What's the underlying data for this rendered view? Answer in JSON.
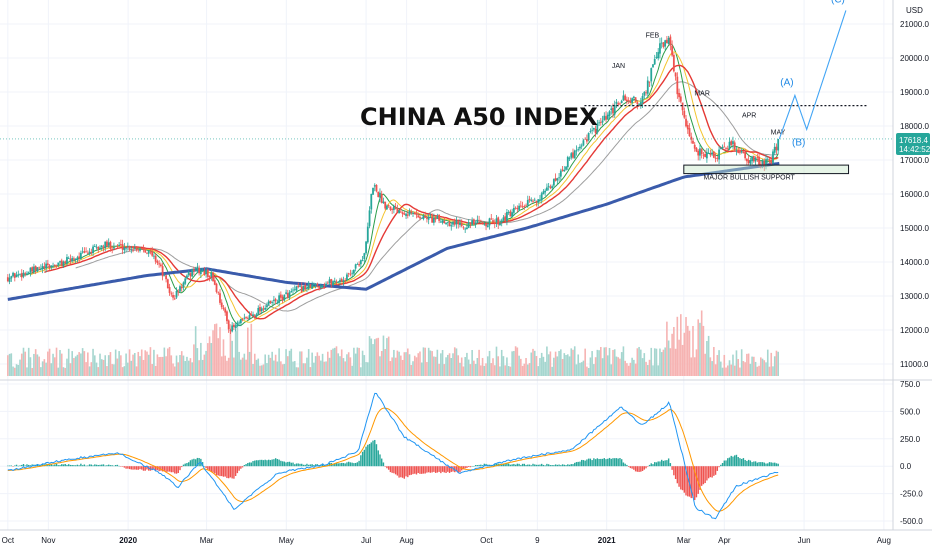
{
  "chart_data": [
    {
      "type": "candlestick",
      "title": "CHINA A50 INDEX",
      "currency": "USD",
      "yticks": [
        11000,
        12000,
        13000,
        14000,
        15000,
        16000,
        17000,
        18000,
        19000,
        20000,
        21000
      ],
      "ytick_labels": [
        "11000.0",
        "12000.0",
        "13000.0",
        "14000.0",
        "15000.0",
        "16000.0",
        "17000.0",
        "18000.0",
        "19000.0",
        "20000.0",
        "21000.0"
      ],
      "ylim": [
        10600,
        21300
      ],
      "last_price": "17618.4",
      "countdown": "14:42:52",
      "colors": {
        "up": "#26a69a",
        "down": "#ef5350",
        "ma_fast": "#2a9d4a",
        "ma_mid": "#f4c430",
        "ma_slow": "#e53935",
        "ma_long": "#9e9e9e",
        "ma_200": "#3a5bab",
        "wave": "#42a5f5"
      },
      "annotations": [
        {
          "label": "JAN",
          "x": "2021-01-10",
          "y": 19700
        },
        {
          "label": "FEB",
          "x": "2021-02-05",
          "y": 20600
        },
        {
          "label": "MAR",
          "x": "2021-03-15",
          "y": 18900
        },
        {
          "label": "APR",
          "x": "2021-04-20",
          "y": 18250
        },
        {
          "label": "MAY",
          "x": "2021-05-12",
          "y": 17750
        },
        {
          "label": "MAJOR BULLISH SUPPORT",
          "x": "2021-04-20",
          "y": 16430
        }
      ],
      "resistance_level": 18600,
      "support_zone": [
        16600,
        16850
      ],
      "wave_labels": [
        "(A)",
        "(B)",
        "(C)"
      ],
      "wave_path": [
        {
          "x": "2021-05-13",
          "y": 17620
        },
        {
          "x": "2021-05-25",
          "y": 18900
        },
        {
          "x": "2021-06-03",
          "y": 17900
        },
        {
          "x": "2021-07-03",
          "y": 21400
        }
      ],
      "anchors": [
        {
          "date": "2019-10-01",
          "value": 13550
        },
        {
          "date": "2019-11-10",
          "value": 13950
        },
        {
          "date": "2019-12-15",
          "value": 14500
        },
        {
          "date": "2020-01-14",
          "value": 14400
        },
        {
          "date": "2020-01-24",
          "value": 14000
        },
        {
          "date": "2020-02-04",
          "value": 12900
        },
        {
          "date": "2020-02-20",
          "value": 13800
        },
        {
          "date": "2020-03-05",
          "value": 13600
        },
        {
          "date": "2020-03-19",
          "value": 12000
        },
        {
          "date": "2020-04-10",
          "value": 12600
        },
        {
          "date": "2020-05-10",
          "value": 13200
        },
        {
          "date": "2020-06-15",
          "value": 13500
        },
        {
          "date": "2020-06-30",
          "value": 14200
        },
        {
          "date": "2020-07-06",
          "value": 16300
        },
        {
          "date": "2020-07-15",
          "value": 15700
        },
        {
          "date": "2020-08-15",
          "value": 15300
        },
        {
          "date": "2020-09-15",
          "value": 15100
        },
        {
          "date": "2020-10-10",
          "value": 15200
        },
        {
          "date": "2020-11-15",
          "value": 16000
        },
        {
          "date": "2020-12-10",
          "value": 17400
        },
        {
          "date": "2021-01-05",
          "value": 18400
        },
        {
          "date": "2021-01-12",
          "value": 18800
        },
        {
          "date": "2021-01-28",
          "value": 18700
        },
        {
          "date": "2021-02-10",
          "value": 20300
        },
        {
          "date": "2021-02-18",
          "value": 20500
        },
        {
          "date": "2021-02-25",
          "value": 18800
        },
        {
          "date": "2021-03-09",
          "value": 17300
        },
        {
          "date": "2021-03-25",
          "value": 17100
        },
        {
          "date": "2021-04-06",
          "value": 17500
        },
        {
          "date": "2021-04-20",
          "value": 17000
        },
        {
          "date": "2021-05-06",
          "value": 16900
        },
        {
          "date": "2021-05-13",
          "value": 17618
        }
      ],
      "ma200_anchors": [
        {
          "date": "2019-10-01",
          "value": 12900
        },
        {
          "date": "2020-01-15",
          "value": 13600
        },
        {
          "date": "2020-03-01",
          "value": 13800
        },
        {
          "date": "2020-05-01",
          "value": 13400
        },
        {
          "date": "2020-07-01",
          "value": 13200
        },
        {
          "date": "2020-09-01",
          "value": 14400
        },
        {
          "date": "2020-11-01",
          "value": 15000
        },
        {
          "date": "2021-01-01",
          "value": 15700
        },
        {
          "date": "2021-03-01",
          "value": 16500
        },
        {
          "date": "2021-05-13",
          "value": 16900
        }
      ]
    },
    {
      "type": "macd",
      "yticks": [
        750,
        500,
        250,
        0,
        -250,
        -500
      ],
      "ytick_labels": [
        "750.0",
        "500.0",
        "250.0",
        "0.0",
        "-250.0",
        "-500.0"
      ],
      "ylim": [
        -560,
        780
      ],
      "anchors": [
        {
          "date": "2019-10-01",
          "value": -40
        },
        {
          "date": "2019-11-20",
          "value": 70
        },
        {
          "date": "2019-12-25",
          "value": 120
        },
        {
          "date": "2020-01-25",
          "value": -60
        },
        {
          "date": "2020-02-08",
          "value": -190
        },
        {
          "date": "2020-02-25",
          "value": 40
        },
        {
          "date": "2020-03-22",
          "value": -390
        },
        {
          "date": "2020-04-25",
          "value": -60
        },
        {
          "date": "2020-06-01",
          "value": 20
        },
        {
          "date": "2020-06-25",
          "value": 140
        },
        {
          "date": "2020-07-08",
          "value": 680
        },
        {
          "date": "2020-07-30",
          "value": 270
        },
        {
          "date": "2020-09-10",
          "value": -60
        },
        {
          "date": "2020-10-25",
          "value": 70
        },
        {
          "date": "2020-12-05",
          "value": 150
        },
        {
          "date": "2021-01-12",
          "value": 540
        },
        {
          "date": "2021-01-28",
          "value": 370
        },
        {
          "date": "2021-02-18",
          "value": 580
        },
        {
          "date": "2021-03-10",
          "value": -380
        },
        {
          "date": "2021-03-25",
          "value": -480
        },
        {
          "date": "2021-04-10",
          "value": -180
        },
        {
          "date": "2021-05-13",
          "value": -50
        }
      ]
    }
  ],
  "x_axis": {
    "start": "2019-09-25",
    "end": "2021-08-08",
    "ticks": [
      {
        "label": "Oct",
        "date": "2019-10-01",
        "year": false
      },
      {
        "label": "Nov",
        "date": "2019-11-01",
        "year": false
      },
      {
        "label": "2020",
        "date": "2020-01-01",
        "year": true
      },
      {
        "label": "Mar",
        "date": "2020-03-01",
        "year": false
      },
      {
        "label": "May",
        "date": "2020-05-01",
        "year": false
      },
      {
        "label": "Jul",
        "date": "2020-07-01",
        "year": false
      },
      {
        "label": "Aug",
        "date": "2020-08-01",
        "year": false
      },
      {
        "label": "Oct",
        "date": "2020-10-01",
        "year": false
      },
      {
        "label": "9",
        "date": "2020-11-09",
        "year": false
      },
      {
        "label": "2021",
        "date": "2021-01-01",
        "year": true
      },
      {
        "label": "Mar",
        "date": "2021-03-01",
        "year": false
      },
      {
        "label": "Apr",
        "date": "2021-04-01",
        "year": false
      },
      {
        "label": "Jun",
        "date": "2021-06-01",
        "year": false
      },
      {
        "label": "Aug",
        "date": "2021-08-01",
        "year": false
      }
    ]
  }
}
